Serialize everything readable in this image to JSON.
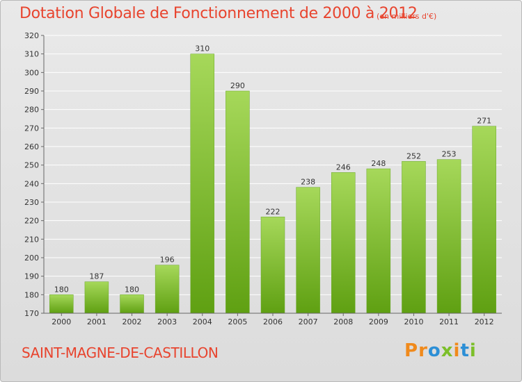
{
  "header": {
    "title": "Dotation Globale de Fonctionnement de 2000 à 2012",
    "subtitle": "(en milliers d'€)"
  },
  "footer": {
    "commune": "SAINT-MAGNE-DE-CASTILLON",
    "logo_text": "Proxiti"
  },
  "colors": {
    "title": "#e8442e",
    "bar_light": "#a6d85a",
    "bar_dark": "#5fa012",
    "grid": "#ffffff",
    "logo_letters": [
      "#f08a1c",
      "#f08a1c",
      "#2c8fd6",
      "#7cbf2a",
      "#f08a1c",
      "#2c8fd6",
      "#7cbf2a"
    ]
  },
  "chart_data": {
    "type": "bar",
    "title": "Dotation Globale de Fonctionnement de 2000 à 2012",
    "subtitle": "(en milliers d'€)",
    "xlabel": "",
    "ylabel": "",
    "categories": [
      "2000",
      "2001",
      "2002",
      "2003",
      "2004",
      "2005",
      "2006",
      "2007",
      "2008",
      "2009",
      "2010",
      "2011",
      "2012"
    ],
    "values": [
      180,
      187,
      180,
      196,
      310,
      290,
      222,
      238,
      246,
      248,
      252,
      253,
      271
    ],
    "ylim": [
      170,
      320
    ],
    "yticks": [
      170,
      180,
      190,
      200,
      210,
      220,
      230,
      240,
      250,
      260,
      270,
      280,
      290,
      300,
      310,
      320
    ],
    "grid": true,
    "data_labels": true
  }
}
